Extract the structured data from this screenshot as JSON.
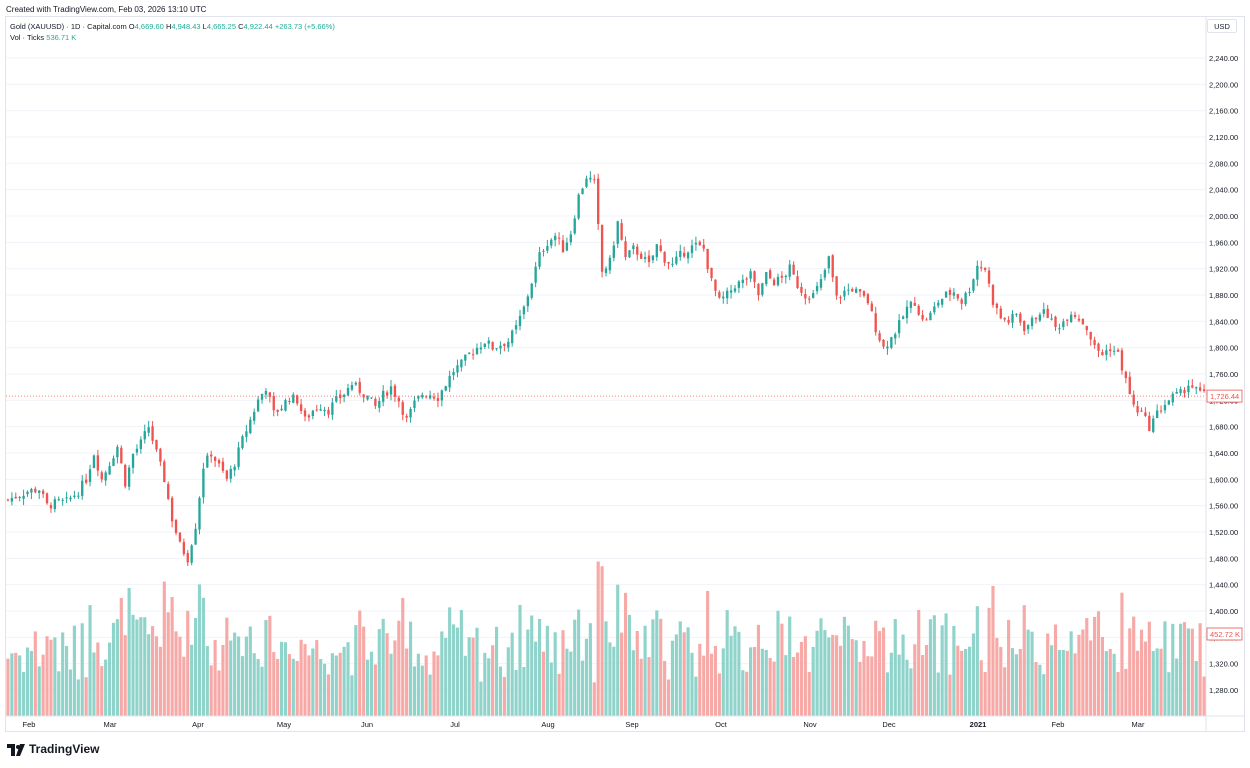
{
  "header": {
    "created": "Created with TradingView.com, Feb 03, 2026 13:10 UTC"
  },
  "legend": {
    "symbol": "Gold (XAUUSD) · 1D · Capital.com",
    "open_label": "O",
    "open": "4,669.60",
    "high_label": "H",
    "high": "4,948.43",
    "low_label": "L",
    "low": "4,665.25",
    "close_label": "C",
    "close": "4,922.44",
    "change": "+263.73 (+5.66%)",
    "volume_label": "Vol · Ticks",
    "volume_value": "536.71 K"
  },
  "currency": "USD",
  "price_tag": "1,726.44",
  "volume_tag": "452.72 K",
  "branding": "TradingView",
  "colors": {
    "up": "#26a69a",
    "down": "#ef5350",
    "volume_up": "#8fd3ca",
    "volume_down": "#f6a9a6",
    "grid": "#f0f3fa",
    "axis_text": "#131722"
  },
  "chart_data": {
    "type": "candlestick",
    "y_axis_ticks": [
      "1,280.00",
      "1,320.00",
      "1,360.00",
      "1,400.00",
      "1,440.00",
      "1,480.00",
      "1,520.00",
      "1,560.00",
      "1,600.00",
      "1,640.00",
      "1,680.00",
      "1,720.00",
      "1,760.00",
      "1,800.00",
      "1,840.00",
      "1,880.00",
      "1,920.00",
      "1,960.00",
      "2,000.00",
      "2,040.00",
      "2,080.00",
      "2,120.00",
      "2,160.00",
      "2,200.00",
      "2,240.00"
    ],
    "x_axis_labels": [
      "Feb",
      "Mar",
      "Apr",
      "May",
      "Jun",
      "Jul",
      "Aug",
      "Sep",
      "Oct",
      "Nov",
      "Dec",
      "2021",
      "Feb",
      "Mar"
    ],
    "ylim": [
      1240,
      2260
    ],
    "close_path": [
      [
        0,
        1569
      ],
      [
        5,
        1582
      ],
      [
        8,
        1585
      ],
      [
        10,
        1560
      ],
      [
        13,
        1565
      ],
      [
        15,
        1566
      ],
      [
        18,
        1582
      ],
      [
        20,
        1600
      ],
      [
        22,
        1640
      ],
      [
        24,
        1600
      ],
      [
        26,
        1625
      ],
      [
        28,
        1650
      ],
      [
        30,
        1595
      ],
      [
        32,
        1638
      ],
      [
        34,
        1655
      ],
      [
        36,
        1680
      ],
      [
        38,
        1640
      ],
      [
        40,
        1600
      ],
      [
        42,
        1540
      ],
      [
        44,
        1500
      ],
      [
        46,
        1480
      ],
      [
        48,
        1530
      ],
      [
        50,
        1620
      ],
      [
        52,
        1640
      ],
      [
        54,
        1620
      ],
      [
        56,
        1600
      ],
      [
        58,
        1625
      ],
      [
        60,
        1660
      ],
      [
        62,
        1690
      ],
      [
        64,
        1720
      ],
      [
        66,
        1740
      ],
      [
        68,
        1700
      ],
      [
        70,
        1710
      ],
      [
        72,
        1725
      ],
      [
        74,
        1720
      ],
      [
        76,
        1690
      ],
      [
        78,
        1705
      ],
      [
        80,
        1712
      ],
      [
        82,
        1705
      ],
      [
        84,
        1720
      ],
      [
        86,
        1730
      ],
      [
        88,
        1745
      ],
      [
        90,
        1735
      ],
      [
        92,
        1725
      ],
      [
        94,
        1710
      ],
      [
        96,
        1728
      ],
      [
        98,
        1740
      ],
      [
        100,
        1720
      ],
      [
        102,
        1690
      ],
      [
        104,
        1715
      ],
      [
        106,
        1730
      ],
      [
        108,
        1730
      ],
      [
        110,
        1725
      ],
      [
        112,
        1745
      ],
      [
        114,
        1765
      ],
      [
        116,
        1775
      ],
      [
        118,
        1790
      ],
      [
        120,
        1800
      ],
      [
        122,
        1810
      ],
      [
        124,
        1800
      ],
      [
        126,
        1805
      ],
      [
        128,
        1810
      ],
      [
        130,
        1830
      ],
      [
        132,
        1860
      ],
      [
        134,
        1900
      ],
      [
        136,
        1940
      ],
      [
        138,
        1960
      ],
      [
        140,
        1970
      ],
      [
        142,
        1950
      ],
      [
        144,
        1975
      ],
      [
        146,
        2030
      ],
      [
        148,
        2060
      ],
      [
        150,
        2050
      ],
      [
        152,
        1915
      ],
      [
        154,
        1930
      ],
      [
        156,
        1990
      ],
      [
        158,
        1935
      ],
      [
        160,
        1950
      ],
      [
        162,
        1940
      ],
      [
        164,
        1925
      ],
      [
        166,
        1955
      ],
      [
        168,
        1935
      ],
      [
        170,
        1925
      ],
      [
        172,
        1940
      ],
      [
        174,
        1950
      ],
      [
        176,
        1955
      ],
      [
        178,
        1950
      ],
      [
        180,
        1900
      ],
      [
        182,
        1870
      ],
      [
        184,
        1880
      ],
      [
        186,
        1895
      ],
      [
        188,
        1900
      ],
      [
        190,
        1910
      ],
      [
        192,
        1880
      ],
      [
        194,
        1910
      ],
      [
        196,
        1900
      ],
      [
        198,
        1905
      ],
      [
        200,
        1920
      ],
      [
        202,
        1895
      ],
      [
        204,
        1880
      ],
      [
        206,
        1880
      ],
      [
        208,
        1900
      ],
      [
        210,
        1935
      ],
      [
        212,
        1875
      ],
      [
        214,
        1885
      ],
      [
        216,
        1890
      ],
      [
        218,
        1880
      ],
      [
        220,
        1870
      ],
      [
        222,
        1830
      ],
      [
        224,
        1800
      ],
      [
        226,
        1815
      ],
      [
        228,
        1835
      ],
      [
        230,
        1860
      ],
      [
        232,
        1870
      ],
      [
        234,
        1840
      ],
      [
        236,
        1850
      ],
      [
        238,
        1870
      ],
      [
        240,
        1880
      ],
      [
        242,
        1885
      ],
      [
        244,
        1870
      ],
      [
        246,
        1890
      ],
      [
        248,
        1925
      ],
      [
        250,
        1920
      ],
      [
        252,
        1870
      ],
      [
        254,
        1845
      ],
      [
        256,
        1840
      ],
      [
        258,
        1850
      ],
      [
        260,
        1830
      ],
      [
        262,
        1840
      ],
      [
        264,
        1855
      ],
      [
        266,
        1850
      ],
      [
        268,
        1830
      ],
      [
        270,
        1840
      ],
      [
        272,
        1855
      ],
      [
        274,
        1845
      ],
      [
        276,
        1830
      ],
      [
        278,
        1800
      ],
      [
        280,
        1790
      ],
      [
        282,
        1800
      ],
      [
        284,
        1790
      ],
      [
        286,
        1750
      ],
      [
        288,
        1710
      ],
      [
        290,
        1700
      ],
      [
        292,
        1680
      ],
      [
        294,
        1700
      ],
      [
        296,
        1715
      ],
      [
        298,
        1725
      ],
      [
        300,
        1730
      ],
      [
        302,
        1745
      ],
      [
        304,
        1735
      ],
      [
        306,
        1728
      ]
    ],
    "last_price": 1726.44,
    "volume_unit": "K ticks"
  }
}
